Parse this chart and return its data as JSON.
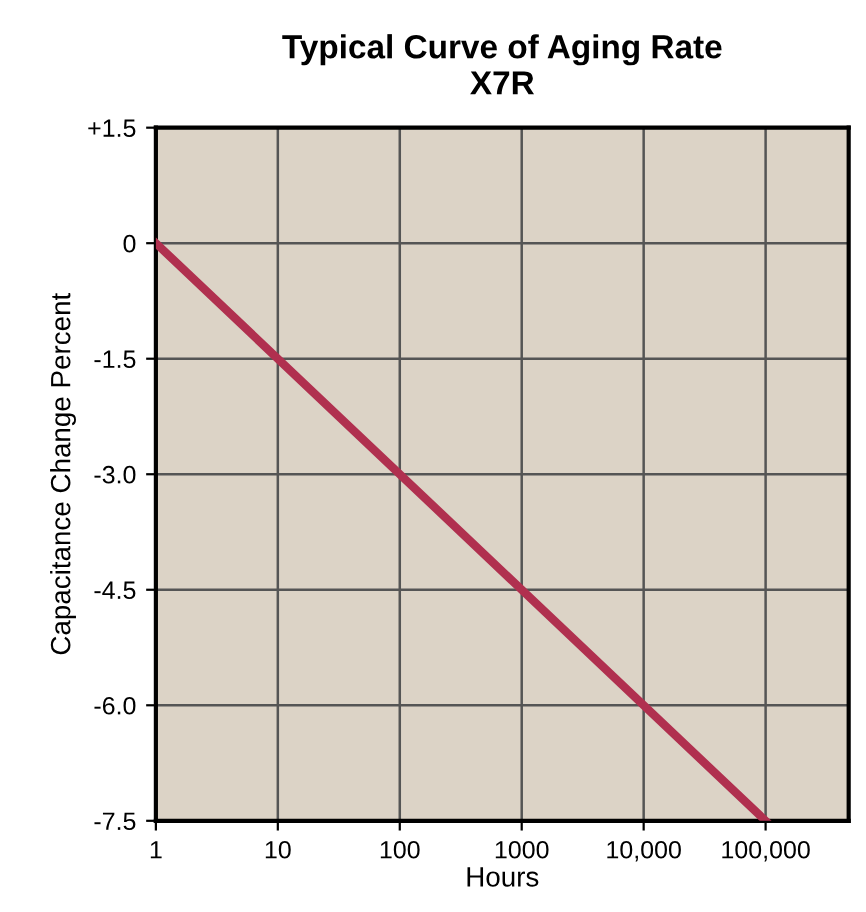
{
  "chart_data": {
    "type": "line",
    "title": "Typical Curve of Aging Rate\nX7R",
    "xlabel": "Hours",
    "ylabel": "Capacitance Change Percent",
    "x": [
      1,
      100000
    ],
    "series": [
      {
        "color": "#b0304f",
        "values": [
          0,
          -7.5
        ]
      }
    ],
    "log": "x",
    "xlim": [
      1,
      480000
    ],
    "xticks": [
      1,
      10,
      100,
      1000,
      {
        "value": 10000,
        "label": "10,000"
      },
      {
        "value": 100000,
        "label": "100,000"
      }
    ],
    "ylim": [
      -7.5,
      1.5
    ],
    "yticks": [
      {
        "value": 1.5,
        "label": "+1.5"
      },
      0,
      {
        "value": -1.5,
        "label": "-1.5"
      },
      {
        "value": -3.0,
        "label": "-3.0"
      },
      {
        "value": -4.5,
        "label": "-4.5"
      },
      {
        "value": -6.0,
        "label": "-6.0"
      },
      {
        "value": -7.5,
        "label": "-7.5"
      }
    ],
    "grid": true,
    "marker": "none",
    "line_style": "solid"
  }
}
